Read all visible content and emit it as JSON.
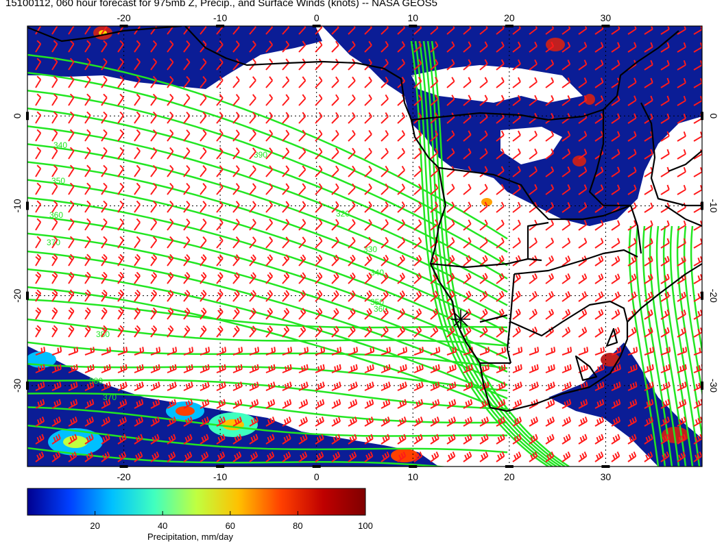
{
  "title": "15100112, 060 hour forecast for 975mb Z, Precip., and Surface Winds (knots) -- NASA GEOS5",
  "map": {
    "lon_range": [
      -30,
      40
    ],
    "lat_range": [
      -39,
      10
    ],
    "lon_ticks": [
      "-20",
      "-10",
      "0",
      "10",
      "20",
      "30"
    ],
    "lat_ticks": [
      "0",
      "-10",
      "-20",
      "-30"
    ],
    "colors": {
      "contour": "#22e622",
      "barb": "#ff1a1a",
      "coast": "#000000",
      "precip_base": "#0b1d96"
    },
    "contour_labels": [
      "340",
      "350",
      "360",
      "370",
      "380",
      "390",
      "320",
      "330"
    ],
    "marker": "asterisk-marker"
  },
  "colorbar": {
    "title": "Precipitation, mm/day",
    "range": [
      0,
      100
    ],
    "ticks": [
      "20",
      "40",
      "60",
      "80",
      "100"
    ],
    "colors": [
      "#00008f",
      "#0040ff",
      "#00c0ff",
      "#40ffbf",
      "#c0ff40",
      "#ffc000",
      "#ff4000",
      "#bf0000",
      "#800000"
    ]
  }
}
